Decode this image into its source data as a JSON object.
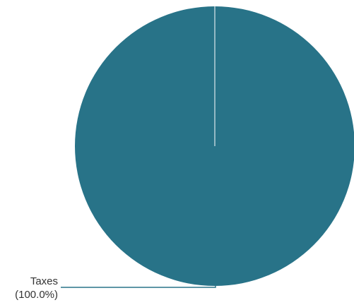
{
  "chart_data": {
    "type": "pie",
    "slices": [
      {
        "label": "Taxes",
        "percent_label": "(100.0%)",
        "value": 100.0,
        "color": "#287388"
      }
    ]
  },
  "colors": {
    "background": "#ffffff",
    "slice_edge": "#ffffff",
    "leader_line": "#287388",
    "label_text": "#333333"
  }
}
